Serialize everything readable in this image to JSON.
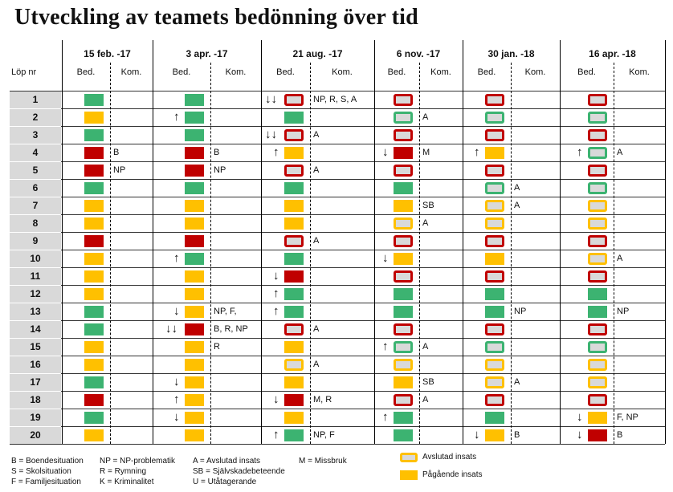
{
  "title": "Utveckling av teamets bedönning över tid",
  "row_header": "Löp nr",
  "sub_headers": {
    "bed": "Bed.",
    "kom": "Kom."
  },
  "dates": [
    "15 feb. -17",
    "3 apr. -17",
    "21 aug. -17",
    "6 nov. -17",
    "30 jan. -18",
    "16 apr. -18"
  ],
  "colors": {
    "green": "#3cb371",
    "yellow": "#ffc000",
    "red": "#c00000",
    "grey": "#d9d9d9"
  },
  "rows": [
    {
      "nr": "1",
      "cells": [
        {
          "b": "green"
        },
        {
          "b": "green"
        },
        {
          "b": "o-red",
          "a": "↓↓",
          "k": "NP, R, S, A"
        },
        {
          "b": "o-red"
        },
        {
          "b": "o-red"
        },
        {
          "b": "o-red"
        }
      ]
    },
    {
      "nr": "2",
      "cells": [
        {
          "b": "yellow"
        },
        {
          "b": "green",
          "a": "↑"
        },
        {
          "b": "green"
        },
        {
          "b": "o-green",
          "k": "A"
        },
        {
          "b": "o-green"
        },
        {
          "b": "o-green"
        }
      ]
    },
    {
      "nr": "3",
      "cells": [
        {
          "b": "green"
        },
        {
          "b": "green"
        },
        {
          "b": "o-red",
          "a": "↓↓",
          "k": "A"
        },
        {
          "b": "o-red"
        },
        {
          "b": "o-red"
        },
        {
          "b": "o-red"
        }
      ]
    },
    {
      "nr": "4",
      "cells": [
        {
          "b": "red",
          "k": "B"
        },
        {
          "b": "red",
          "k": "B"
        },
        {
          "b": "yellow",
          "a": "↑"
        },
        {
          "b": "red",
          "a": "↓",
          "k": "M"
        },
        {
          "b": "yellow",
          "a": "↑"
        },
        {
          "b": "o-green",
          "a": "↑",
          "k": "A"
        }
      ]
    },
    {
      "nr": "5",
      "cells": [
        {
          "b": "red",
          "k": "NP"
        },
        {
          "b": "red",
          "k": "NP"
        },
        {
          "b": "o-red",
          "k": "A"
        },
        {
          "b": "o-red"
        },
        {
          "b": "o-red"
        },
        {
          "b": "o-red"
        }
      ]
    },
    {
      "nr": "6",
      "cells": [
        {
          "b": "green"
        },
        {
          "b": "green"
        },
        {
          "b": "green"
        },
        {
          "b": "green"
        },
        {
          "b": "o-green",
          "k": "A"
        },
        {
          "b": "o-green"
        }
      ]
    },
    {
      "nr": "7",
      "cells": [
        {
          "b": "yellow"
        },
        {
          "b": "yellow"
        },
        {
          "b": "yellow"
        },
        {
          "b": "yellow",
          "k": "SB"
        },
        {
          "b": "o-yellow",
          "k": "A"
        },
        {
          "b": "o-yellow"
        }
      ]
    },
    {
      "nr": "8",
      "cells": [
        {
          "b": "yellow"
        },
        {
          "b": "yellow"
        },
        {
          "b": "yellow"
        },
        {
          "b": "o-yellow",
          "k": "A"
        },
        {
          "b": "o-yellow"
        },
        {
          "b": "o-yellow"
        }
      ]
    },
    {
      "nr": "9",
      "cells": [
        {
          "b": "red"
        },
        {
          "b": "red"
        },
        {
          "b": "o-red",
          "k": "A"
        },
        {
          "b": "o-red"
        },
        {
          "b": "o-red"
        },
        {
          "b": "o-red"
        }
      ]
    },
    {
      "nr": "10",
      "cells": [
        {
          "b": "yellow"
        },
        {
          "b": "green",
          "a": "↑"
        },
        {
          "b": "green"
        },
        {
          "b": "yellow",
          "a": "↓"
        },
        {
          "b": "yellow"
        },
        {
          "b": "o-yellow",
          "k": "A"
        }
      ]
    },
    {
      "nr": "11",
      "cells": [
        {
          "b": "yellow"
        },
        {
          "b": "yellow"
        },
        {
          "b": "red",
          "a": "↓"
        },
        {
          "b": "o-red"
        },
        {
          "b": "o-red"
        },
        {
          "b": "o-red"
        }
      ]
    },
    {
      "nr": "12",
      "cells": [
        {
          "b": "yellow"
        },
        {
          "b": "yellow"
        },
        {
          "b": "green",
          "a": "↑"
        },
        {
          "b": "green"
        },
        {
          "b": "green"
        },
        {
          "b": "green"
        }
      ]
    },
    {
      "nr": "13",
      "cells": [
        {
          "b": "green"
        },
        {
          "b": "yellow",
          "a": "↓",
          "k": "NP, F,"
        },
        {
          "b": "green",
          "a": "↑"
        },
        {
          "b": "green"
        },
        {
          "b": "green",
          "k": "NP"
        },
        {
          "b": "green",
          "k": "NP"
        }
      ]
    },
    {
      "nr": "14",
      "cells": [
        {
          "b": "green"
        },
        {
          "b": "red",
          "a": "↓↓",
          "k": "B, R, NP"
        },
        {
          "b": "o-red",
          "k": "A"
        },
        {
          "b": "o-red"
        },
        {
          "b": "o-red"
        },
        {
          "b": "o-red"
        }
      ]
    },
    {
      "nr": "15",
      "cells": [
        {
          "b": "yellow"
        },
        {
          "b": "yellow",
          "k": "R"
        },
        {
          "b": "yellow"
        },
        {
          "b": "o-green",
          "a": "↑",
          "k": "A"
        },
        {
          "b": "o-green"
        },
        {
          "b": "o-green"
        }
      ]
    },
    {
      "nr": "16",
      "cells": [
        {
          "b": "yellow"
        },
        {
          "b": "yellow"
        },
        {
          "b": "o-yellow",
          "k": "A"
        },
        {
          "b": "o-yellow"
        },
        {
          "b": "o-yellow"
        },
        {
          "b": "o-yellow"
        }
      ]
    },
    {
      "nr": "17",
      "cells": [
        {
          "b": "green"
        },
        {
          "b": "yellow",
          "a": "↓"
        },
        {
          "b": "yellow"
        },
        {
          "b": "yellow",
          "k": "SB"
        },
        {
          "b": "o-yellow",
          "k": "A"
        },
        {
          "b": "o-yellow"
        }
      ]
    },
    {
      "nr": "18",
      "cells": [
        {
          "b": "red"
        },
        {
          "b": "yellow",
          "a": "↑"
        },
        {
          "b": "red",
          "a": "↓",
          "k": "M, R"
        },
        {
          "b": "o-red",
          "k": "A"
        },
        {
          "b": "o-red"
        },
        {
          "b": "o-red"
        }
      ]
    },
    {
      "nr": "19",
      "cells": [
        {
          "b": "green"
        },
        {
          "b": "yellow",
          "a": "↓"
        },
        {
          "b": "yellow"
        },
        {
          "b": "green",
          "a": "↑"
        },
        {
          "b": "green"
        },
        {
          "b": "yellow",
          "a": "↓",
          "k": "F, NP"
        }
      ]
    },
    {
      "nr": "20",
      "cells": [
        {
          "b": "yellow"
        },
        {
          "b": "yellow"
        },
        {
          "b": "green",
          "a": "↑",
          "k": "NP, F"
        },
        {
          "b": "green"
        },
        {
          "b": "yellow",
          "a": "↓",
          "k": "B"
        },
        {
          "b": "red",
          "a": "↓",
          "k": "B"
        }
      ]
    }
  ],
  "legend": {
    "col1": [
      "B = Boendesituation",
      "S = Skolsituation",
      "F = Familjesituation"
    ],
    "col2": [
      "NP = NP-problematik",
      "R = Rymning",
      "K = Kriminalitet"
    ],
    "col3": [
      "A = Avslutad insats",
      "SB = Självskadebeteende",
      "U = Utåtagerande"
    ],
    "col4": [
      "M = Missbruk"
    ],
    "swatches": [
      {
        "style": "o-yellow",
        "label": "Avslutad insats"
      },
      {
        "style": "yellow",
        "label": "Pågående insats"
      }
    ]
  }
}
